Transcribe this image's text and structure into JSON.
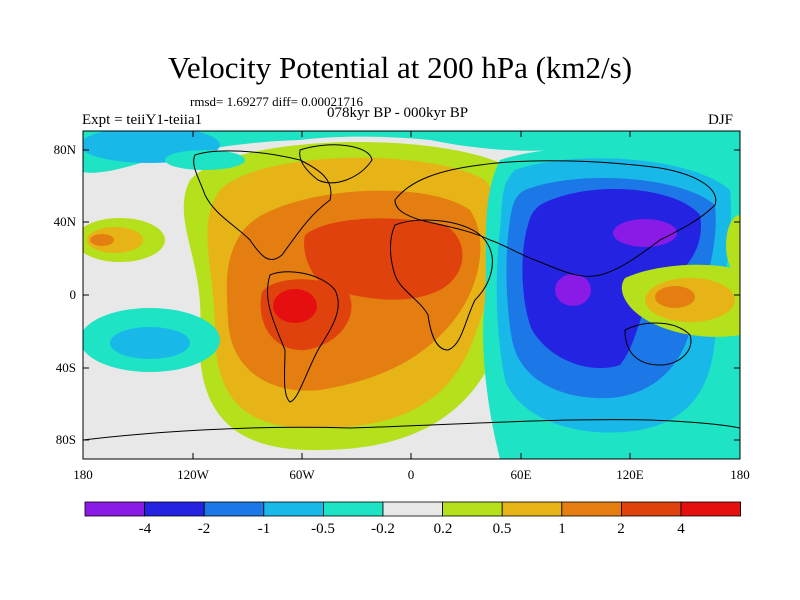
{
  "header": {
    "title": "Velocity Potential at 200 hPa (km2/s)",
    "stats": "rmsd= 1.69277 diff= 0.00021716",
    "expt": "Expt = teiiY1-teiia1",
    "period": "078kyr BP - 000kyr BP",
    "season": "DJF"
  },
  "axes": {
    "lat_labels": [
      "80N",
      "40N",
      "0",
      "40S",
      "80S"
    ],
    "lon_labels": [
      "180",
      "120W",
      "60W",
      "0",
      "60E",
      "120E",
      "180"
    ]
  },
  "colorbar": {
    "labels": [
      "-4",
      "-2",
      "-1",
      "-0.5",
      "-0.2",
      "0.2",
      "0.5",
      "1",
      "2",
      "4"
    ],
    "colors": [
      "#8a1ae6",
      "#2323e1",
      "#1c78e6",
      "#18b9e8",
      "#1ee3c4",
      "#e8e8e8",
      "#b5e01c",
      "#e6b416",
      "#e47e10",
      "#e0420e",
      "#e60f0f"
    ]
  }
}
